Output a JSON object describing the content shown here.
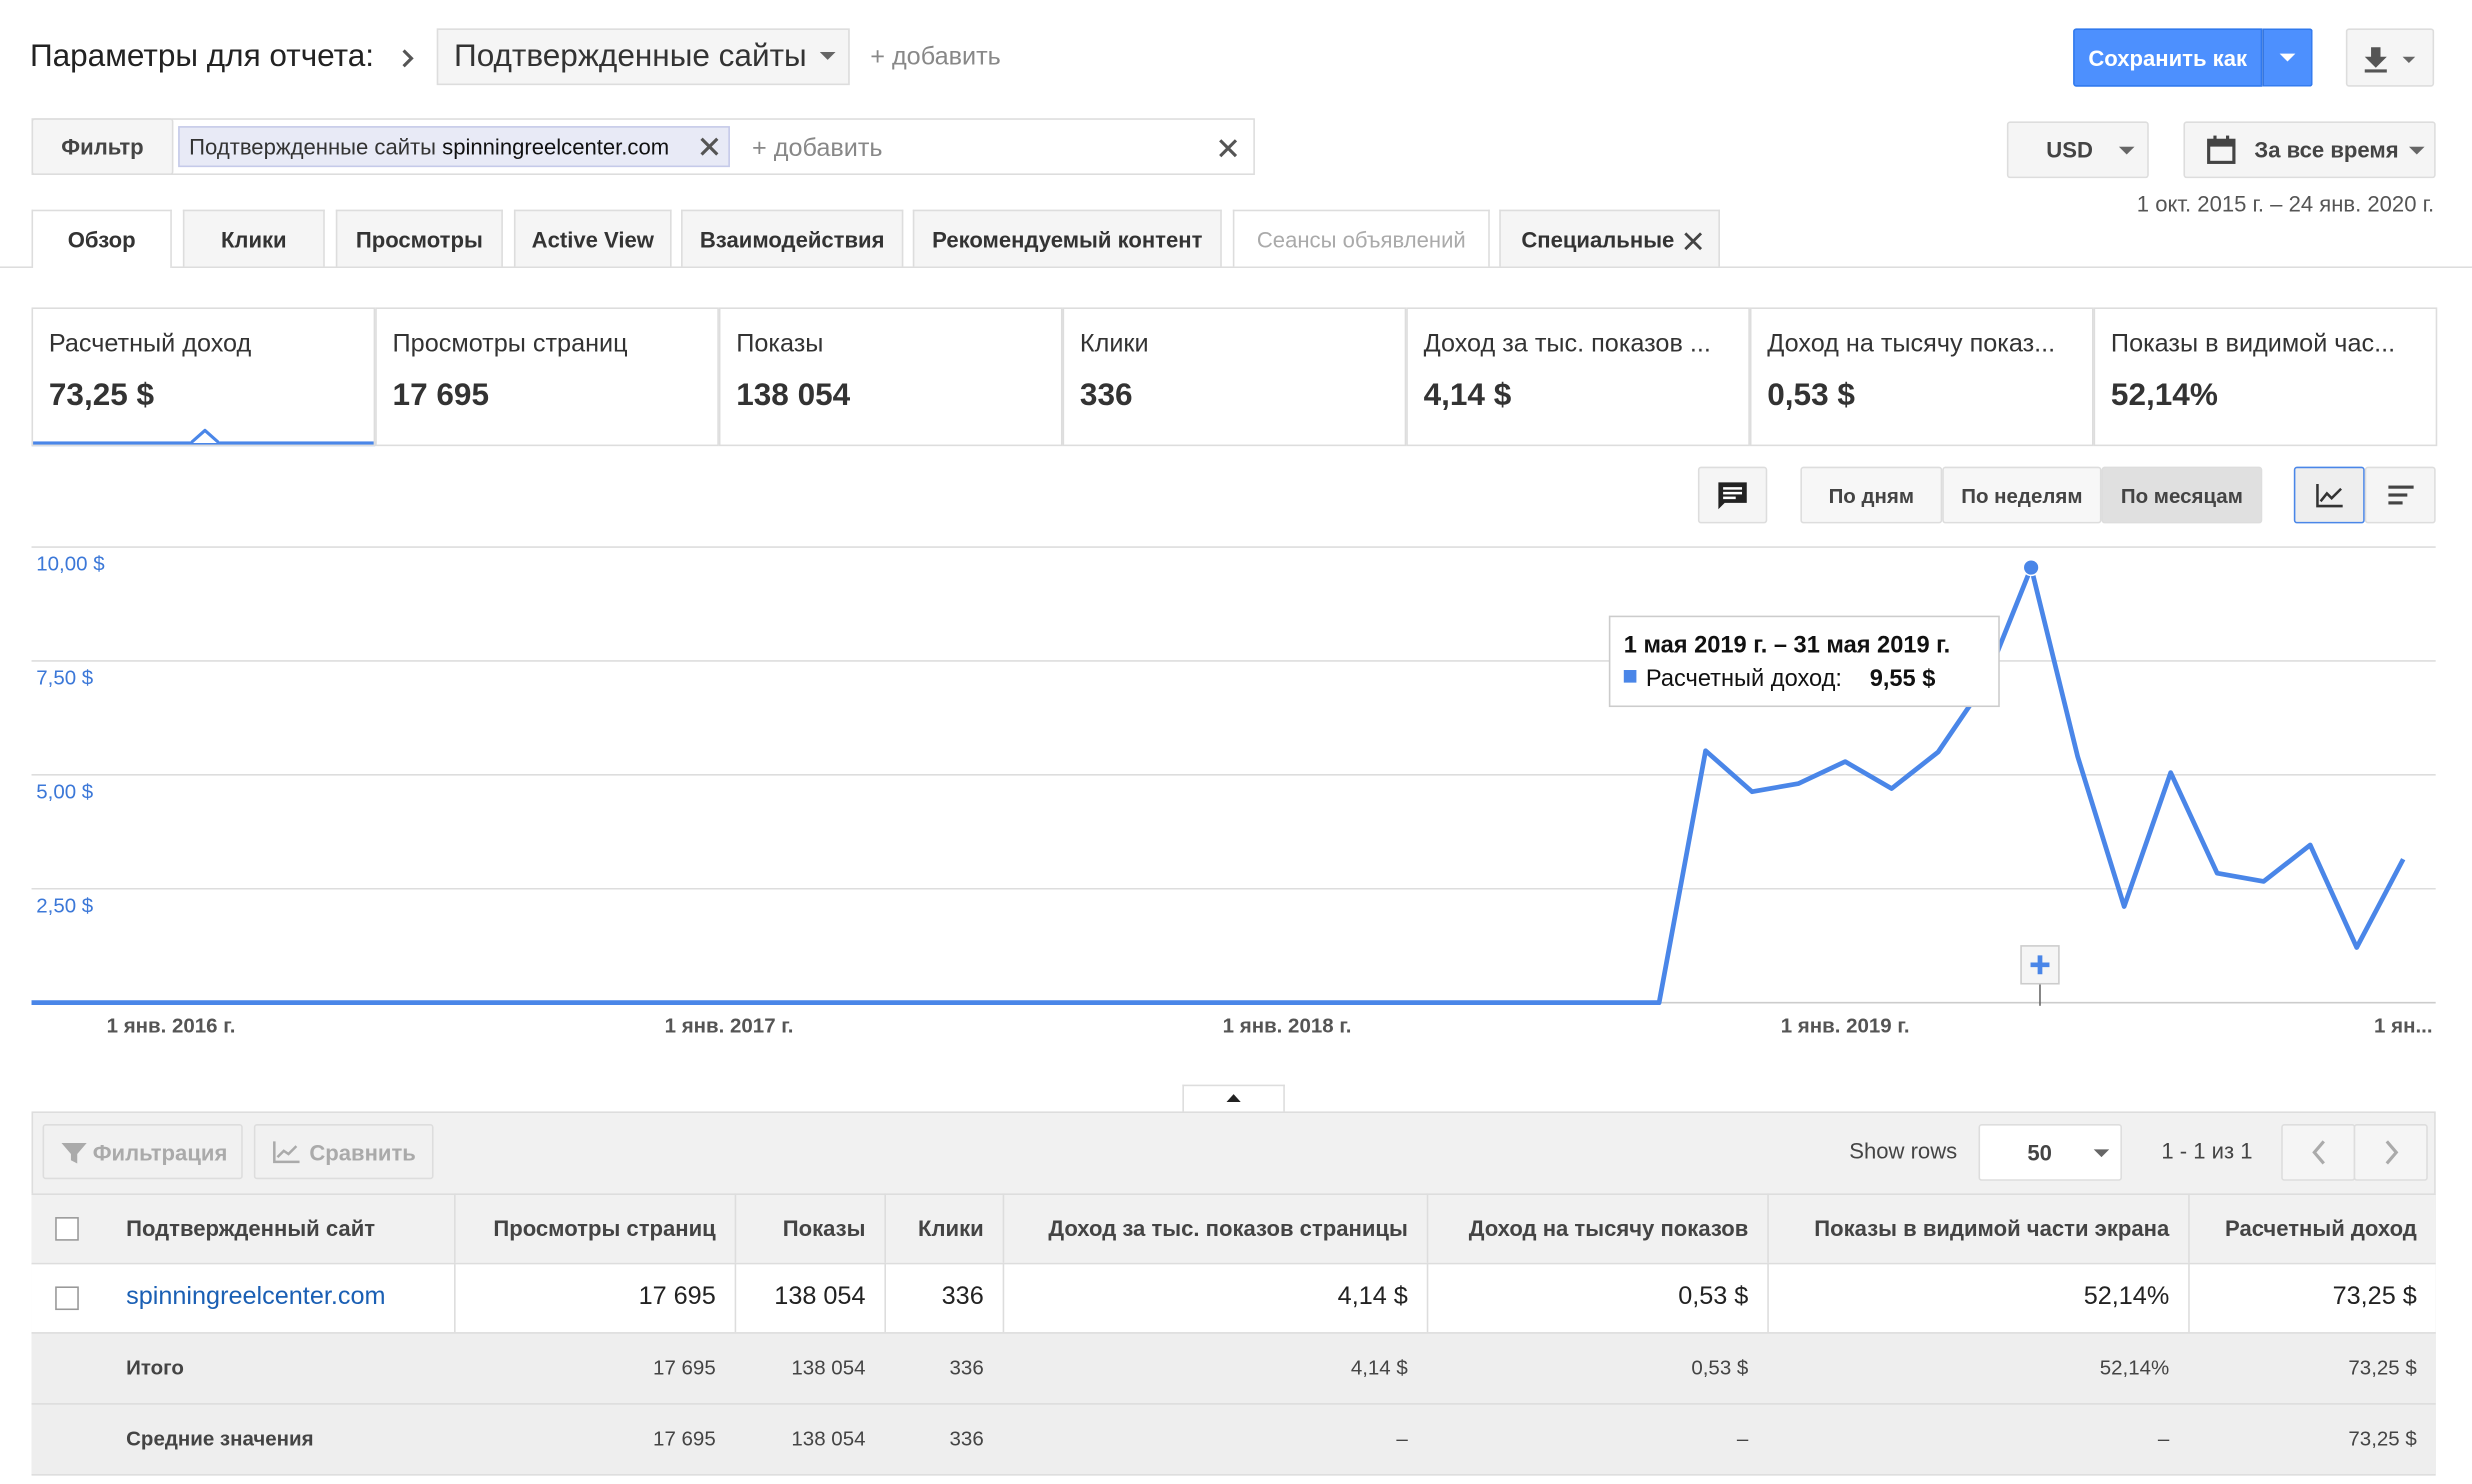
{
  "header": {
    "title": "Параметры для отчета:",
    "selector": "Подтвержденные сайты",
    "add": "+ добавить",
    "save": "Сохранить как"
  },
  "filter": {
    "label": "Фильтр",
    "chip_dimension": "Подтвержденные сайты",
    "chip_value": "spinningreelcenter.com",
    "add": "+ добавить"
  },
  "currency": "USD",
  "date_button": "За все время",
  "date_range": "1 окт. 2015 г. – 24 янв. 2020 г.",
  "tabs": [
    "Обзор",
    "Клики",
    "Просмотры",
    "Active View",
    "Взаимодействия",
    "Рекомендуемый контент",
    "Сеансы объявлений",
    "Специальные"
  ],
  "metrics": [
    {
      "label": "Расчетный доход",
      "value": "73,25 $"
    },
    {
      "label": "Просмотры страниц",
      "value": "17 695"
    },
    {
      "label": "Показы",
      "value": "138 054"
    },
    {
      "label": "Клики",
      "value": "336"
    },
    {
      "label": "Доход за тыс. показов ...",
      "value": "4,14 $"
    },
    {
      "label": "Доход на тысячу показ...",
      "value": "0,53 $"
    },
    {
      "label": "Показы в видимой час...",
      "value": "52,14%"
    }
  ],
  "granularity": [
    "По дням",
    "По неделям",
    "По месяцам"
  ],
  "chart_data": {
    "type": "line",
    "color": "#4a86e8",
    "categories": [
      null,
      null,
      null,
      "1 янв. 2016 г.",
      null,
      null,
      null,
      null,
      null,
      null,
      null,
      null,
      null,
      null,
      null,
      "1 янв. 2017 г.",
      null,
      null,
      null,
      null,
      null,
      null,
      null,
      null,
      null,
      null,
      null,
      "1 янв. 2018 г.",
      null,
      null,
      null,
      null,
      null,
      null,
      null,
      null,
      null,
      null,
      null,
      "1 янв. 2019 г.",
      null,
      null,
      null,
      null,
      null,
      null,
      null,
      null,
      null,
      null,
      null,
      "1 ян..."
    ],
    "values": [
      0,
      0,
      0,
      0,
      0,
      0,
      0,
      0,
      0,
      0,
      0,
      0,
      0,
      0,
      0,
      0,
      0,
      0,
      0,
      0,
      0,
      0,
      0,
      0,
      0,
      0,
      0,
      0,
      0,
      0,
      0,
      0,
      0,
      0,
      0,
      0,
      5.53,
      4.63,
      4.81,
      5.29,
      4.7,
      5.5,
      7.0,
      9.55,
      5.4,
      2.11,
      5.05,
      2.84,
      2.66,
      3.46,
      1.21,
      3.15
    ],
    "ylim": [
      0,
      10
    ],
    "yticks": [
      {
        "value": 2.5,
        "label": "2,50 $"
      },
      {
        "value": 5,
        "label": "5,00 $"
      },
      {
        "value": 7.5,
        "label": "7,50 $"
      },
      {
        "value": 10,
        "label": "10,00 $"
      }
    ],
    "grid": true,
    "tooltip": {
      "title": "1 мая 2019 г. – 31 мая 2019 г.",
      "series_name": "Расчетный доход:",
      "index": 43,
      "value_label": "9,55 $"
    }
  },
  "table": {
    "toolbar": {
      "filter": "Фильтрация",
      "compare": "Сравнить",
      "show_rows": "Show rows",
      "rows_value": "50",
      "pagination": "1 - 1 из 1"
    },
    "columns": [
      "Подтвержденный сайт",
      "Просмотры страниц",
      "Показы",
      "Клики",
      "Доход за тыс. показов страницы",
      "Доход на тысячу показов",
      "Показы в видимой части экрана",
      "Расчетный доход"
    ],
    "rows": [
      [
        "spinningreelcenter.com",
        "17 695",
        "138 054",
        "336",
        "4,14 $",
        "0,53 $",
        "52,14%",
        "73,25 $"
      ],
      [
        "Итого",
        "17 695",
        "138 054",
        "336",
        "4,14 $",
        "0,53 $",
        "52,14%",
        "73,25 $"
      ],
      [
        "Средние значения",
        "17 695",
        "138 054",
        "336",
        "–",
        "–",
        "–",
        "73,25 $"
      ]
    ]
  }
}
